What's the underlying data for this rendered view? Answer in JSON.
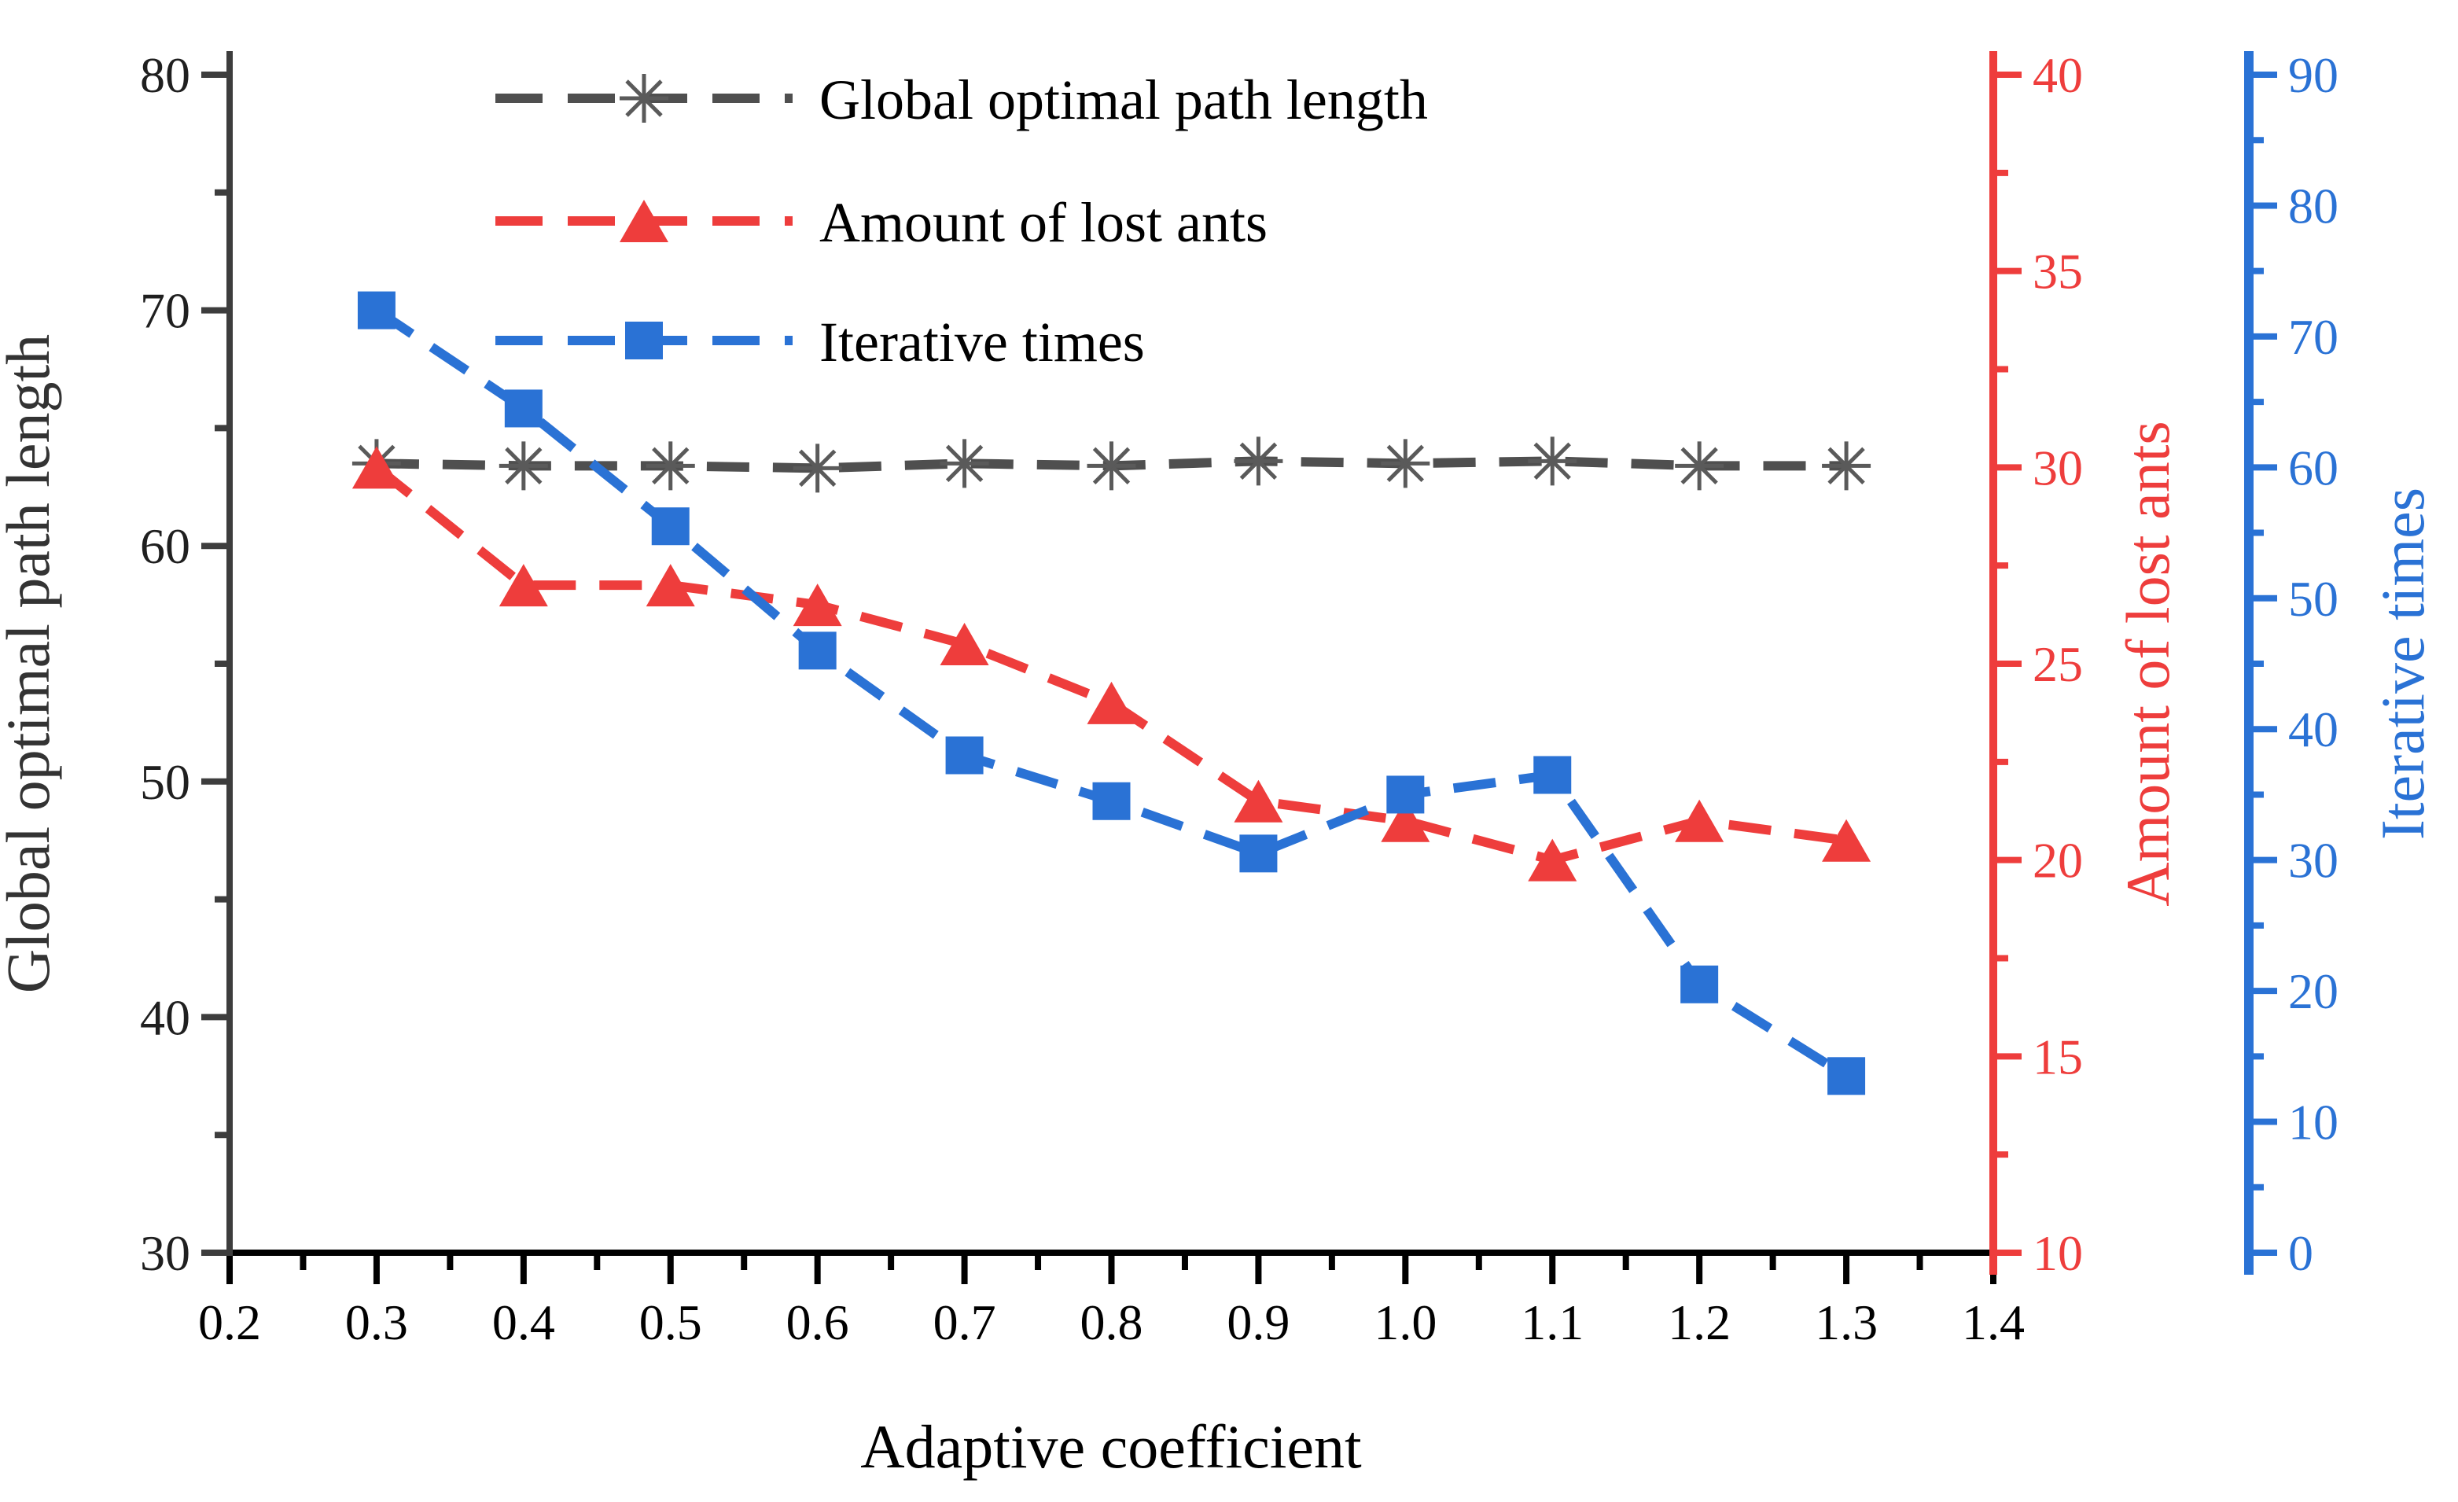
{
  "chart_data": {
    "type": "line",
    "title": "",
    "xlabel": "Adaptive coefficient",
    "background": "#ffffff",
    "grid": false,
    "legend_position": "top-inside",
    "x": [
      0.3,
      0.4,
      0.5,
      0.6,
      0.7,
      0.8,
      0.9,
      1.0,
      1.1,
      1.2,
      1.3
    ],
    "axes": {
      "x": {
        "label": "Adaptive coefficient",
        "min": 0.2,
        "max": 1.4,
        "major": 0.1,
        "minor": 0.05,
        "decimals": 1,
        "color": "#000000",
        "tick_color": "#000000",
        "title_color": "#000000",
        "tick_labels": [
          "0.2",
          "0.3",
          "0.4",
          "0.5",
          "0.6",
          "0.7",
          "0.8",
          "0.9",
          "1.0",
          "1.1",
          "1.2",
          "1.3",
          "1.4"
        ]
      },
      "left": {
        "label": "Global optimal path length",
        "min": 30,
        "max": 80,
        "major": 10,
        "minor": 5,
        "decimals": 0,
        "color": "#3d3d3d",
        "tick_color": "#1f1f1f",
        "title_color": "#333333",
        "tick_labels": [
          "30",
          "40",
          "50",
          "60",
          "70",
          "80"
        ]
      },
      "right1": {
        "label": "Amount of lost ants",
        "min": 10,
        "max": 40,
        "major": 5,
        "minor": 2.5,
        "decimals": 0,
        "color": "#ee3d3c",
        "tick_color": "#ee3d3c",
        "title_color": "#ee3d3c",
        "tick_labels": [
          "10",
          "15",
          "20",
          "25",
          "30",
          "35",
          "40"
        ]
      },
      "right2": {
        "label": "Iterative times",
        "min": 0,
        "max": 90,
        "major": 10,
        "minor": 5,
        "decimals": 0,
        "color": "#2a72d5",
        "tick_color": "#2a72d5",
        "title_color": "#2a72d5",
        "tick_labels": [
          "0",
          "10",
          "20",
          "30",
          "40",
          "50",
          "60",
          "70",
          "80",
          "90"
        ]
      }
    },
    "series": [
      {
        "name": "Global optimal path length",
        "axis": "left",
        "color": "#4f4f4f",
        "marker": "asterisk",
        "marker_color": "#5a5a5a",
        "values": [
          63.5,
          63.4,
          63.4,
          63.3,
          63.5,
          63.4,
          63.6,
          63.5,
          63.6,
          63.4,
          63.4
        ]
      },
      {
        "name": "Amount of lost ants",
        "axis": "right1",
        "color": "#ee3d3c",
        "marker": "triangle",
        "marker_color": "#ee3d3c",
        "values": [
          30,
          27,
          27,
          26.5,
          25.5,
          24,
          21.5,
          21,
          20,
          21,
          20.5
        ]
      },
      {
        "name": "Iterative times",
        "axis": "right2",
        "color": "#2a72d5",
        "marker": "square",
        "marker_color": "#2a72d5",
        "values": [
          72,
          64.5,
          55.5,
          46,
          38,
          34.5,
          30.5,
          35,
          36.5,
          20.5,
          13.5
        ]
      }
    ]
  }
}
